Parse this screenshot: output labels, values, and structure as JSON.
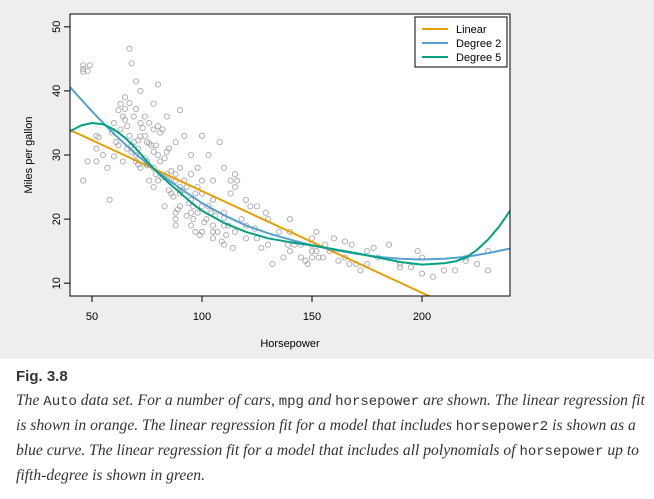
{
  "chart_data": {
    "type": "scatter",
    "xlabel": "Horsepower",
    "ylabel": "Miles per gallon",
    "xlim": [
      40,
      240
    ],
    "ylim": [
      8,
      52
    ],
    "x_ticks": [
      50,
      100,
      150,
      200
    ],
    "y_ticks": [
      10,
      20,
      30,
      40,
      50
    ],
    "grid": false,
    "legend_position": "top-right",
    "series": [
      {
        "name": "Linear",
        "type": "line",
        "color": "#e69f00",
        "x": [
          40,
          212
        ],
        "y": [
          33.9,
          6.6
        ]
      },
      {
        "name": "Degree 2",
        "type": "line",
        "color": "#56a0d3",
        "x": [
          40,
          50,
          60,
          70,
          80,
          90,
          100,
          110,
          120,
          130,
          140,
          150,
          160,
          170,
          180,
          190,
          200,
          210,
          220,
          230,
          240
        ],
        "y": [
          40.6,
          36.8,
          33.3,
          30.1,
          27.3,
          24.8,
          22.5,
          20.6,
          19.0,
          17.8,
          16.8,
          15.9,
          15.2,
          14.6,
          14.1,
          13.8,
          13.7,
          13.8,
          14.1,
          14.7,
          15.4
        ]
      },
      {
        "name": "Degree 5",
        "type": "line",
        "color": "#00a380",
        "x": [
          40,
          45,
          50,
          55,
          60,
          65,
          70,
          75,
          80,
          85,
          90,
          95,
          100,
          110,
          120,
          130,
          140,
          150,
          160,
          170,
          180,
          190,
          200,
          210,
          215,
          220,
          225,
          230,
          235,
          240
        ],
        "y": [
          33.7,
          34.6,
          35.0,
          34.8,
          34.0,
          32.7,
          31.0,
          29.0,
          27.2,
          25.6,
          24.1,
          22.6,
          21.3,
          19.4,
          18.0,
          17.0,
          16.4,
          15.9,
          15.3,
          14.7,
          14.0,
          13.3,
          12.9,
          13.1,
          13.4,
          14.0,
          15.2,
          16.8,
          18.8,
          21.3
        ]
      }
    ],
    "points": [
      [
        46,
        44.0
      ],
      [
        46,
        43.4
      ],
      [
        46,
        43.0
      ],
      [
        49,
        44.0
      ],
      [
        52,
        29.0
      ],
      [
        52,
        31.0
      ],
      [
        53,
        32.8
      ],
      [
        46,
        26.0
      ],
      [
        48,
        29.0
      ],
      [
        48,
        43.1
      ],
      [
        58,
        23.0
      ],
      [
        60,
        29.8
      ],
      [
        61,
        32.0
      ],
      [
        62,
        37.0
      ],
      [
        63,
        38.0
      ],
      [
        64,
        36.0
      ],
      [
        65,
        39.0
      ],
      [
        65,
        35.5
      ],
      [
        66,
        31.0
      ],
      [
        67,
        38.1
      ],
      [
        67,
        33.0
      ],
      [
        67,
        46.6
      ],
      [
        68,
        44.3
      ],
      [
        68,
        31.5
      ],
      [
        69,
        32.0
      ],
      [
        70,
        30.0
      ],
      [
        70,
        29.0
      ],
      [
        70,
        37.2
      ],
      [
        71,
        31.0
      ],
      [
        71,
        32.3
      ],
      [
        72,
        35.0
      ],
      [
        72,
        32.9
      ],
      [
        72,
        28.0
      ],
      [
        74,
        36.0
      ],
      [
        74,
        33.0
      ],
      [
        75,
        28.4
      ],
      [
        75,
        29.0
      ],
      [
        75,
        32.0
      ],
      [
        76,
        31.8
      ],
      [
        76,
        26.0
      ],
      [
        78,
        30.5
      ],
      [
        78,
        34.0
      ],
      [
        78,
        25.0
      ],
      [
        79,
        31.5
      ],
      [
        80,
        30.0
      ],
      [
        80,
        26.0
      ],
      [
        80,
        34.5
      ],
      [
        81,
        29.0
      ],
      [
        82,
        34.0
      ],
      [
        83,
        22.0
      ],
      [
        84,
        27.0
      ],
      [
        85,
        26.0
      ],
      [
        86,
        24.0
      ],
      [
        86,
        27.5
      ],
      [
        88,
        27.0
      ],
      [
        88,
        26.0
      ],
      [
        88,
        21.0
      ],
      [
        88,
        20.0
      ],
      [
        88,
        19.0
      ],
      [
        90,
        28.0
      ],
      [
        90,
        25.0
      ],
      [
        90,
        24.0
      ],
      [
        90,
        22.0
      ],
      [
        92,
        26.0
      ],
      [
        93,
        25.0
      ],
      [
        95,
        27.0
      ],
      [
        95,
        23.0
      ],
      [
        95,
        21.0
      ],
      [
        95,
        19.0
      ],
      [
        96,
        20.0
      ],
      [
        97,
        24.0
      ],
      [
        97,
        18.0
      ],
      [
        98,
        25.0
      ],
      [
        100,
        24.0
      ],
      [
        100,
        18.0
      ],
      [
        100,
        22.0
      ],
      [
        100,
        26.0
      ],
      [
        102,
        20.0
      ],
      [
        103,
        22.0
      ],
      [
        105,
        19.0
      ],
      [
        105,
        23.0
      ],
      [
        105,
        18.0
      ],
      [
        105,
        17.0
      ],
      [
        107,
        18.0
      ],
      [
        108,
        32.0
      ],
      [
        110,
        19.0
      ],
      [
        110,
        16.0
      ],
      [
        110,
        21.0
      ],
      [
        110,
        20.2
      ],
      [
        112,
        19.0
      ],
      [
        113,
        26.0
      ],
      [
        115,
        18.0
      ],
      [
        115,
        25.0
      ],
      [
        116,
        26.0
      ],
      [
        120,
        19.0
      ],
      [
        120,
        17.0
      ],
      [
        122,
        22.0
      ],
      [
        125,
        17.0
      ],
      [
        129,
        21.0
      ],
      [
        130,
        16.0
      ],
      [
        130,
        20.0
      ],
      [
        135,
        18.0
      ],
      [
        139,
        16.0
      ],
      [
        140,
        18.0
      ],
      [
        140,
        15.0
      ],
      [
        145,
        14.0
      ],
      [
        145,
        16.0
      ],
      [
        148,
        13.0
      ],
      [
        150,
        14.0
      ],
      [
        150,
        16.0
      ],
      [
        150,
        15.0
      ],
      [
        150,
        17.0
      ],
      [
        152,
        18.0
      ],
      [
        153,
        14.0
      ],
      [
        155,
        14.0
      ],
      [
        158,
        15.0
      ],
      [
        160,
        17.0
      ],
      [
        165,
        14.0
      ],
      [
        167,
        13.0
      ],
      [
        170,
        13.0
      ],
      [
        175,
        13.0
      ],
      [
        180,
        14.0
      ],
      [
        190,
        13.0
      ],
      [
        198,
        15.0
      ],
      [
        200,
        14.0
      ],
      [
        215,
        12.0
      ],
      [
        220,
        14.0
      ],
      [
        225,
        13.0
      ],
      [
        230,
        12.0
      ],
      [
        52,
        33.0
      ],
      [
        55,
        30.0
      ],
      [
        57,
        28.0
      ],
      [
        59,
        33.5
      ],
      [
        60,
        35.0
      ],
      [
        62,
        31.5
      ],
      [
        63,
        34.0
      ],
      [
        64,
        29.0
      ],
      [
        66,
        34.5
      ],
      [
        68,
        30.5
      ],
      [
        69,
        36.0
      ],
      [
        71,
        28.5
      ],
      [
        73,
        34.2
      ],
      [
        74,
        29.5
      ],
      [
        76,
        35.0
      ],
      [
        77,
        31.5
      ],
      [
        79,
        27.0
      ],
      [
        81,
        33.5
      ],
      [
        82,
        26.5
      ],
      [
        84,
        30.5
      ],
      [
        85,
        24.5
      ],
      [
        87,
        23.5
      ],
      [
        89,
        21.5
      ],
      [
        91,
        24.5
      ],
      [
        93,
        20.5
      ],
      [
        94,
        22.5
      ],
      [
        96,
        22.0
      ],
      [
        98,
        21.0
      ],
      [
        99,
        17.5
      ],
      [
        101,
        19.5
      ],
      [
        104,
        21.0
      ],
      [
        106,
        20.5
      ],
      [
        109,
        16.5
      ],
      [
        111,
        17.5
      ],
      [
        114,
        15.5
      ],
      [
        118,
        20.0
      ],
      [
        124,
        18.5
      ],
      [
        127,
        15.5
      ],
      [
        132,
        13.0
      ],
      [
        137,
        14.0
      ],
      [
        142,
        16.0
      ],
      [
        147,
        13.5
      ],
      [
        156,
        16.0
      ],
      [
        162,
        13.5
      ],
      [
        168,
        16.0
      ],
      [
        172,
        12.0
      ],
      [
        178,
        15.5
      ],
      [
        185,
        16.0
      ],
      [
        195,
        12.5
      ],
      [
        205,
        11.0
      ],
      [
        210,
        12.0
      ],
      [
        65,
        37.2
      ],
      [
        72,
        40.0
      ],
      [
        78,
        38.0
      ],
      [
        84,
        36.0
      ],
      [
        92,
        33.0
      ],
      [
        98,
        28.0
      ],
      [
        103,
        30.0
      ],
      [
        110,
        28.0
      ],
      [
        115,
        27.0
      ],
      [
        120,
        23.0
      ],
      [
        70,
        41.5
      ],
      [
        80,
        41.0
      ],
      [
        90,
        37.0
      ],
      [
        100,
        33.0
      ],
      [
        85,
        31.0
      ],
      [
        88,
        32.0
      ],
      [
        83,
        29.5
      ],
      [
        78,
        28.0
      ],
      [
        95,
        30.0
      ],
      [
        105,
        26.0
      ],
      [
        113,
        24.0
      ],
      [
        125,
        22.0
      ],
      [
        140,
        20.0
      ],
      [
        152,
        15.0
      ],
      [
        165,
        16.5
      ],
      [
        175,
        15.0
      ],
      [
        190,
        12.5
      ],
      [
        220,
        13.5
      ],
      [
        230,
        15.0
      ],
      [
        200,
        11.5
      ]
    ]
  },
  "caption": {
    "label": "Fig. 3.8",
    "parts": [
      "The ",
      "Auto",
      " data set. For a number of cars, ",
      "mpg",
      " and ",
      "horsepower",
      " are shown. The linear regression fit is shown in orange. The linear regression fit for a model that includes ",
      "horsepower2",
      " is shown as a blue curve. The linear regression fit for a model that includes all polynomials of ",
      "horsepower",
      " up to fifth-degree is shown in green."
    ]
  }
}
